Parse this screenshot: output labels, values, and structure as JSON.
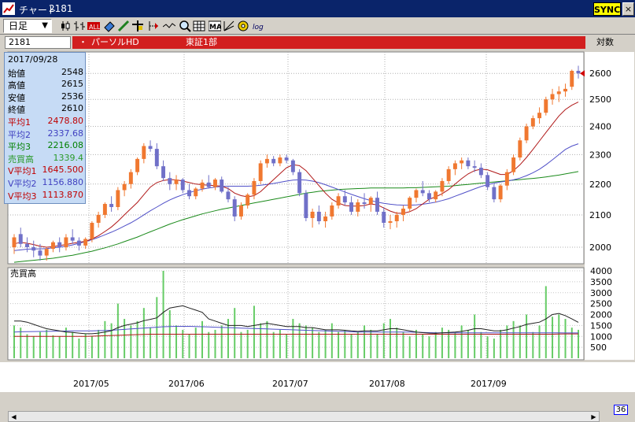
{
  "window": {
    "title": "チャート",
    "code": "2181",
    "sync_label": "SYNC",
    "close_label": "×"
  },
  "toolbar": {
    "period": "日足",
    "period_arrow": "▼"
  },
  "info": {
    "code": "2181",
    "dot": "・",
    "name": "パーソルHD",
    "market": "東証1部",
    "chart_type": "対数"
  },
  "infobox": [
    {
      "k": "2017/09/28",
      "v": "",
      "color": "#000000"
    },
    {
      "k": "始値",
      "v": "2548",
      "color": "#000000"
    },
    {
      "k": "高値",
      "v": "2615",
      "color": "#000000"
    },
    {
      "k": "安値",
      "v": "2536",
      "color": "#000000"
    },
    {
      "k": "終値",
      "v": "2610",
      "color": "#000000"
    },
    {
      "k": "平均1",
      "v": "2478.80",
      "color": "#c00000"
    },
    {
      "k": "平均2",
      "v": "2337.68",
      "color": "#4040c0"
    },
    {
      "k": "平均3",
      "v": "2216.08",
      "color": "#008000"
    },
    {
      "k": "売買高",
      "v": "1339.4",
      "color": "#2a9a2a"
    },
    {
      "k": "V平均1",
      "v": "1645.500",
      "color": "#c00000"
    },
    {
      "k": "V平均2",
      "v": "1156.880",
      "color": "#4040c0"
    },
    {
      "k": "V平均3",
      "v": "1113.870",
      "color": "#c00000"
    }
  ],
  "colors": {
    "up": "#f07830",
    "down": "#7070c8",
    "ma1": "#b01818",
    "ma2": "#5050c8",
    "ma3": "#1a8a1a",
    "volume": "#66cc66"
  },
  "scroll_count": "36",
  "chart_data": [
    {
      "type": "candlestick",
      "ylim": [
        1960,
        2660
      ],
      "yticks": [
        "2600",
        "2500",
        "2400",
        "2300",
        "2200",
        "2100",
        "2000"
      ],
      "x_labels": [
        "2017/05",
        "2017/06",
        "2017/07",
        "2017/08",
        "2017/09"
      ],
      "ohlc": [
        [
          2000,
          2040,
          1980,
          2030
        ],
        [
          2040,
          2060,
          2000,
          2010
        ],
        [
          2010,
          2030,
          1985,
          2000
        ],
        [
          2000,
          2020,
          1970,
          1990
        ],
        [
          1990,
          2010,
          1960,
          1975
        ],
        [
          1975,
          2000,
          1960,
          1995
        ],
        [
          1995,
          2020,
          1985,
          2015
        ],
        [
          2015,
          2030,
          1985,
          2000
        ],
        [
          2000,
          2040,
          1990,
          2030
        ],
        [
          2030,
          2055,
          2010,
          2020
        ],
        [
          2020,
          2030,
          1990,
          2005
        ],
        [
          2005,
          2030,
          1995,
          2025
        ],
        [
          2025,
          2080,
          2015,
          2075
        ],
        [
          2075,
          2110,
          2060,
          2100
        ],
        [
          2100,
          2140,
          2090,
          2135
        ],
        [
          2135,
          2160,
          2110,
          2125
        ],
        [
          2125,
          2190,
          2115,
          2180
        ],
        [
          2180,
          2210,
          2160,
          2200
        ],
        [
          2200,
          2250,
          2185,
          2240
        ],
        [
          2240,
          2290,
          2230,
          2285
        ],
        [
          2285,
          2340,
          2270,
          2330
        ],
        [
          2330,
          2350,
          2310,
          2320
        ],
        [
          2320,
          2340,
          2250,
          2260
        ],
        [
          2260,
          2280,
          2210,
          2220
        ],
        [
          2220,
          2240,
          2180,
          2200
        ],
        [
          2200,
          2230,
          2180,
          2215
        ],
        [
          2215,
          2220,
          2170,
          2180
        ],
        [
          2180,
          2200,
          2150,
          2160
        ],
        [
          2160,
          2190,
          2150,
          2185
        ],
        [
          2185,
          2215,
          2175,
          2205
        ],
        [
          2205,
          2230,
          2185,
          2190
        ],
        [
          2190,
          2220,
          2180,
          2215
        ],
        [
          2215,
          2225,
          2170,
          2175
        ],
        [
          2175,
          2190,
          2140,
          2150
        ],
        [
          2150,
          2160,
          2080,
          2095
        ],
        [
          2095,
          2140,
          2085,
          2130
        ],
        [
          2130,
          2170,
          2120,
          2165
        ],
        [
          2165,
          2220,
          2150,
          2210
        ],
        [
          2210,
          2280,
          2200,
          2270
        ],
        [
          2270,
          2300,
          2255,
          2285
        ],
        [
          2285,
          2295,
          2260,
          2270
        ],
        [
          2270,
          2300,
          2260,
          2290
        ],
        [
          2290,
          2300,
          2270,
          2280
        ],
        [
          2280,
          2285,
          2230,
          2240
        ],
        [
          2240,
          2250,
          2160,
          2170
        ],
        [
          2170,
          2180,
          2080,
          2090
        ],
        [
          2090,
          2120,
          2060,
          2110
        ],
        [
          2110,
          2130,
          2070,
          2080
        ],
        [
          2080,
          2110,
          2060,
          2095
        ],
        [
          2095,
          2140,
          2085,
          2130
        ],
        [
          2130,
          2170,
          2120,
          2160
        ],
        [
          2160,
          2180,
          2130,
          2140
        ],
        [
          2140,
          2160,
          2100,
          2110
        ],
        [
          2110,
          2150,
          2095,
          2140
        ],
        [
          2140,
          2170,
          2120,
          2135
        ],
        [
          2135,
          2160,
          2110,
          2155
        ],
        [
          2155,
          2175,
          2100,
          2110
        ],
        [
          2110,
          2125,
          2060,
          2075
        ],
        [
          2075,
          2100,
          2055,
          2080
        ],
        [
          2080,
          2110,
          2060,
          2100
        ],
        [
          2100,
          2130,
          2080,
          2120
        ],
        [
          2120,
          2160,
          2110,
          2155
        ],
        [
          2155,
          2185,
          2140,
          2180
        ],
        [
          2180,
          2210,
          2160,
          2170
        ],
        [
          2170,
          2180,
          2140,
          2150
        ],
        [
          2150,
          2180,
          2140,
          2175
        ],
        [
          2175,
          2220,
          2160,
          2210
        ],
        [
          2210,
          2260,
          2200,
          2250
        ],
        [
          2250,
          2280,
          2230,
          2270
        ],
        [
          2270,
          2290,
          2250,
          2280
        ],
        [
          2280,
          2290,
          2250,
          2260
        ],
        [
          2260,
          2280,
          2240,
          2255
        ],
        [
          2255,
          2270,
          2220,
          2230
        ],
        [
          2230,
          2240,
          2180,
          2190
        ],
        [
          2190,
          2200,
          2140,
          2150
        ],
        [
          2150,
          2200,
          2140,
          2195
        ],
        [
          2195,
          2250,
          2180,
          2240
        ],
        [
          2240,
          2300,
          2230,
          2290
        ],
        [
          2290,
          2360,
          2280,
          2350
        ],
        [
          2350,
          2410,
          2340,
          2400
        ],
        [
          2400,
          2440,
          2390,
          2430
        ],
        [
          2430,
          2470,
          2410,
          2450
        ],
        [
          2450,
          2510,
          2440,
          2500
        ],
        [
          2500,
          2540,
          2480,
          2520
        ],
        [
          2520,
          2550,
          2490,
          2530
        ],
        [
          2530,
          2560,
          2510,
          2540
        ],
        [
          2548,
          2615,
          2536,
          2610
        ],
        [
          2610,
          2630,
          2580,
          2600
        ]
      ],
      "ma1": [
        2010,
        2015,
        2012,
        2008,
        2003,
        2000,
        2002,
        2005,
        2008,
        2012,
        2015,
        2018,
        2025,
        2035,
        2048,
        2062,
        2080,
        2100,
        2120,
        2140,
        2165,
        2190,
        2205,
        2212,
        2215,
        2214,
        2210,
        2205,
        2200,
        2198,
        2196,
        2195,
        2193,
        2185,
        2170,
        2162,
        2158,
        2162,
        2175,
        2195,
        2215,
        2235,
        2255,
        2265,
        2262,
        2245,
        2220,
        2195,
        2170,
        2150,
        2138,
        2130,
        2128,
        2128,
        2130,
        2135,
        2132,
        2122,
        2112,
        2105,
        2105,
        2110,
        2120,
        2135,
        2150,
        2158,
        2168,
        2182,
        2200,
        2218,
        2234,
        2245,
        2250,
        2248,
        2240,
        2232,
        2232,
        2245,
        2265,
        2290,
        2318,
        2348,
        2378,
        2408,
        2438,
        2462,
        2478,
        2490
      ],
      "ma2": [
        1990,
        1992,
        1994,
        1995,
        1995,
        1996,
        1998,
        2000,
        2003,
        2007,
        2012,
        2017,
        2023,
        2030,
        2038,
        2046,
        2055,
        2065,
        2075,
        2087,
        2100,
        2113,
        2125,
        2137,
        2148,
        2157,
        2165,
        2172,
        2178,
        2183,
        2187,
        2190,
        2192,
        2193,
        2193,
        2193,
        2193,
        2194,
        2196,
        2199,
        2202,
        2206,
        2210,
        2213,
        2214,
        2213,
        2210,
        2205,
        2198,
        2190,
        2182,
        2174,
        2166,
        2159,
        2152,
        2146,
        2141,
        2137,
        2134,
        2132,
        2131,
        2131,
        2132,
        2134,
        2137,
        2141,
        2146,
        2152,
        2160,
        2168,
        2176,
        2184,
        2192,
        2198,
        2203,
        2207,
        2210,
        2214,
        2220,
        2228,
        2238,
        2250,
        2265,
        2282,
        2300,
        2318,
        2330,
        2338
      ],
      "ma3": [
        1955,
        1957,
        1959,
        1961,
        1963,
        1965,
        1967,
        1970,
        1973,
        1976,
        1980,
        1984,
        1988,
        1993,
        1998,
        2004,
        2010,
        2017,
        2024,
        2031,
        2039,
        2047,
        2055,
        2063,
        2071,
        2078,
        2085,
        2091,
        2097,
        2103,
        2108,
        2113,
        2118,
        2122,
        2126,
        2130,
        2134,
        2138,
        2142,
        2146,
        2150,
        2154,
        2158,
        2162,
        2166,
        2170,
        2173,
        2176,
        2178,
        2180,
        2182,
        2183,
        2184,
        2185,
        2186,
        2187,
        2187,
        2187,
        2187,
        2187,
        2187,
        2188,
        2188,
        2189,
        2190,
        2191,
        2192,
        2193,
        2195,
        2197,
        2199,
        2201,
        2203,
        2205,
        2207,
        2209,
        2211,
        2213,
        2215,
        2217,
        2219,
        2221,
        2224,
        2227,
        2230,
        2234,
        2238,
        2242
      ]
    },
    {
      "type": "bar",
      "title": "売買高",
      "ylim": [
        0,
        4000
      ],
      "yticks": [
        "4000",
        "3500",
        "3000",
        "2500",
        "2000",
        "1500",
        "1000",
        "500"
      ],
      "values": [
        1500,
        1400,
        1100,
        1000,
        1200,
        1300,
        1050,
        1000,
        1400,
        1200,
        900,
        1100,
        1000,
        1300,
        1700,
        1600,
        2500,
        1800,
        1500,
        1700,
        2300,
        1400,
        2800,
        4000,
        2200,
        1500,
        1300,
        1100,
        1400,
        1700,
        1200,
        1300,
        1500,
        1800,
        2300,
        1200,
        1300,
        2400,
        1600,
        1700,
        1200,
        1300,
        1100,
        1800,
        1600,
        1500,
        1400,
        1200,
        1300,
        1600,
        1200,
        1300,
        1100,
        1200,
        1500,
        1300,
        1100,
        1600,
        1800,
        1400,
        1200,
        1000,
        1300,
        1100,
        1000,
        1200,
        1400,
        1300,
        1200,
        1500,
        1300,
        2000,
        1200,
        1000,
        900,
        1300,
        1500,
        1700,
        1500,
        2000,
        1200,
        1500,
        3300,
        1900,
        2000,
        1800,
        1400,
        1300
      ],
      "vma1": [
        1700,
        1700,
        1650,
        1550,
        1450,
        1350,
        1300,
        1250,
        1200,
        1180,
        1150,
        1120,
        1120,
        1150,
        1200,
        1260,
        1400,
        1500,
        1560,
        1620,
        1720,
        1780,
        1850,
        2100,
        2300,
        2350,
        2400,
        2300,
        2200,
        2100,
        1800,
        1700,
        1600,
        1500,
        1500,
        1500,
        1450,
        1500,
        1550,
        1600,
        1550,
        1500,
        1450,
        1450,
        1450,
        1400,
        1400,
        1350,
        1300,
        1300,
        1300,
        1280,
        1250,
        1230,
        1250,
        1250,
        1250,
        1300,
        1350,
        1350,
        1300,
        1250,
        1200,
        1170,
        1150,
        1140,
        1160,
        1180,
        1200,
        1230,
        1280,
        1350,
        1350,
        1300,
        1250,
        1250,
        1300,
        1380,
        1450,
        1550,
        1600,
        1650,
        1800,
        2000,
        2050,
        1950,
        1800,
        1645
      ],
      "vma2": [
        1200,
        1210,
        1215,
        1220,
        1225,
        1230,
        1235,
        1240,
        1245,
        1250,
        1250,
        1250,
        1255,
        1260,
        1270,
        1280,
        1300,
        1320,
        1340,
        1360,
        1380,
        1400,
        1420,
        1440,
        1450,
        1460,
        1460,
        1460,
        1450,
        1440,
        1430,
        1420,
        1410,
        1400,
        1390,
        1380,
        1370,
        1360,
        1350,
        1340,
        1330,
        1320,
        1310,
        1300,
        1290,
        1280,
        1270,
        1260,
        1250,
        1240,
        1230,
        1220,
        1210,
        1200,
        1200,
        1200,
        1200,
        1200,
        1200,
        1200,
        1200,
        1200,
        1190,
        1180,
        1170,
        1160,
        1160,
        1160,
        1160,
        1160,
        1160,
        1160,
        1160,
        1160,
        1160,
        1160,
        1160,
        1160,
        1160,
        1160,
        1160,
        1160,
        1160,
        1160,
        1160,
        1158,
        1157,
        1157
      ],
      "vma3": [
        1000,
        1000,
        1000,
        1000,
        1000,
        1000,
        1000,
        1000,
        1000,
        1000,
        1000,
        1000,
        1010,
        1020,
        1030,
        1040,
        1050,
        1060,
        1070,
        1080,
        1090,
        1100,
        1100,
        1100,
        1100,
        1100,
        1100,
        1100,
        1100,
        1100,
        1100,
        1100,
        1100,
        1100,
        1100,
        1100,
        1100,
        1100,
        1100,
        1100,
        1100,
        1100,
        1100,
        1100,
        1100,
        1100,
        1100,
        1100,
        1100,
        1100,
        1100,
        1100,
        1100,
        1100,
        1100,
        1100,
        1100,
        1100,
        1100,
        1100,
        1100,
        1100,
        1100,
        1100,
        1100,
        1100,
        1100,
        1100,
        1100,
        1100,
        1100,
        1100,
        1100,
        1100,
        1100,
        1100,
        1100,
        1100,
        1100,
        1100,
        1100,
        1100,
        1100,
        1100,
        1110,
        1112,
        1113,
        1114
      ]
    }
  ]
}
